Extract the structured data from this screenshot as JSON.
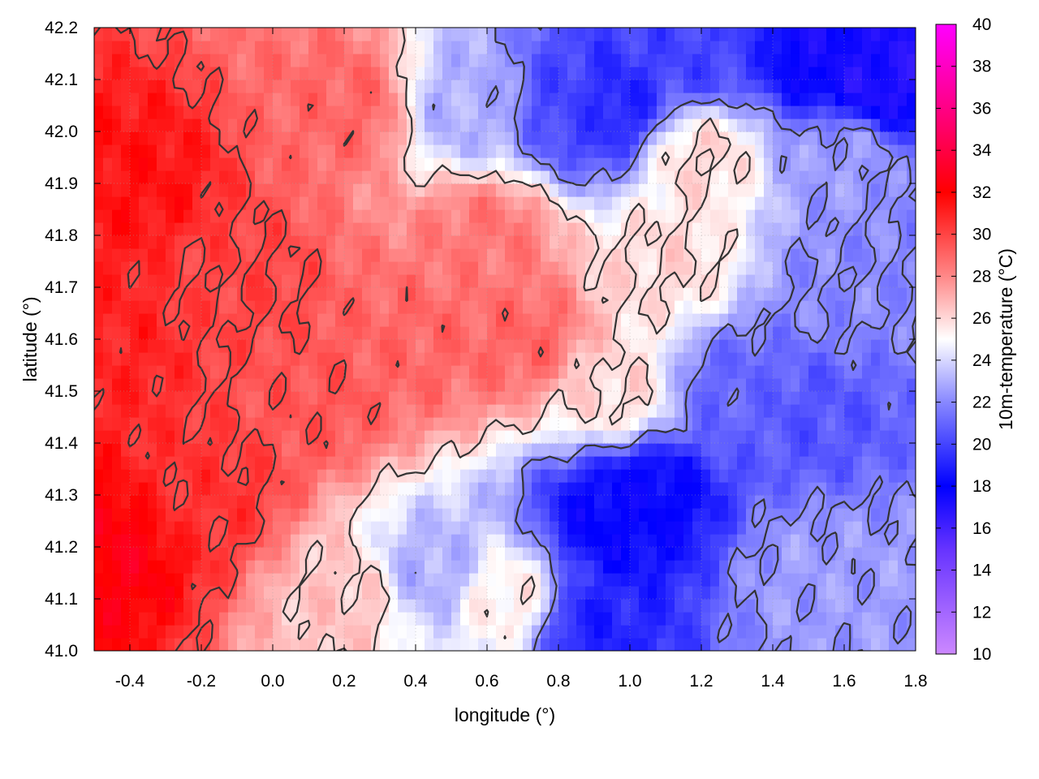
{
  "chart_data": {
    "type": "heatmap",
    "title": "",
    "xlabel": "longitude (°)",
    "ylabel": "latitude (°)",
    "colorbar_label": "10m-temperature (°C)",
    "xlim": [
      -0.5,
      1.8
    ],
    "ylim": [
      41.0,
      42.2
    ],
    "clim": [
      10,
      40
    ],
    "x_ticks": [
      -0.4,
      -0.2,
      0.0,
      0.2,
      0.4,
      0.6,
      0.8,
      1.0,
      1.2,
      1.4,
      1.6,
      1.8
    ],
    "x_tick_labels": [
      "-0.4",
      "-0.2",
      "0.0",
      "0.2",
      "0.4",
      "0.6",
      "0.8",
      "1.0",
      "1.2",
      "1.4",
      "1.6",
      "1.8"
    ],
    "y_ticks": [
      41.0,
      41.1,
      41.2,
      41.3,
      41.4,
      41.5,
      41.6,
      41.7,
      41.8,
      41.9,
      42.0,
      42.1,
      42.2
    ],
    "y_tick_labels": [
      "41.0",
      "41.1",
      "41.2",
      "41.3",
      "41.4",
      "41.5",
      "41.6",
      "41.7",
      "41.8",
      "41.9",
      "42.0",
      "42.1",
      "42.2"
    ],
    "cb_ticks": [
      10,
      12,
      14,
      16,
      18,
      20,
      22,
      24,
      26,
      28,
      30,
      32,
      34,
      36,
      38,
      40
    ],
    "cb_tick_labels": [
      "10",
      "12",
      "14",
      "16",
      "18",
      "20",
      "22",
      "24",
      "26",
      "28",
      "30",
      "32",
      "34",
      "36",
      "38",
      "40"
    ],
    "colormap": [
      {
        "v": 10,
        "c": "#cc88ff"
      },
      {
        "v": 15,
        "c": "#6633ff"
      },
      {
        "v": 18,
        "c": "#0000ff"
      },
      {
        "v": 22,
        "c": "#8888ff"
      },
      {
        "v": 25,
        "c": "#ffffff"
      },
      {
        "v": 28,
        "c": "#ff8888"
      },
      {
        "v": 32,
        "c": "#ff0000"
      },
      {
        "v": 35,
        "c": "#ff0066"
      },
      {
        "v": 40,
        "c": "#ff00ff"
      }
    ],
    "grid": true,
    "field_regions": [
      {
        "lon": -0.4,
        "lat": 41.9,
        "t": 31.5
      },
      {
        "lon": -0.45,
        "lat": 41.6,
        "t": 31
      },
      {
        "lon": -0.45,
        "lat": 41.2,
        "t": 32.5
      },
      {
        "lon": -0.2,
        "lat": 41.3,
        "t": 30.5
      },
      {
        "lon": -0.1,
        "lat": 41.7,
        "t": 30
      },
      {
        "lon": 0.1,
        "lat": 41.5,
        "t": 29.5
      },
      {
        "lon": 0.2,
        "lat": 42.05,
        "t": 29
      },
      {
        "lon": 0.4,
        "lat": 41.6,
        "t": 29
      },
      {
        "lon": 0.7,
        "lat": 41.6,
        "t": 29
      },
      {
        "lon": 0.6,
        "lat": 41.8,
        "t": 28.5
      },
      {
        "lon": 0.2,
        "lat": 41.1,
        "t": 26.5
      },
      {
        "lon": 0.45,
        "lat": 41.15,
        "t": 23
      },
      {
        "lon": 0.65,
        "lat": 41.1,
        "t": 25.5
      },
      {
        "lon": 0.9,
        "lat": 41.05,
        "t": 19
      },
      {
        "lon": 0.95,
        "lat": 41.25,
        "t": 18
      },
      {
        "lon": 1.05,
        "lat": 41.3,
        "t": 18
      },
      {
        "lon": 1.3,
        "lat": 41.5,
        "t": 21
      },
      {
        "lon": 1.5,
        "lat": 41.45,
        "t": 20.5
      },
      {
        "lon": 1.5,
        "lat": 41.15,
        "t": 22.5
      },
      {
        "lon": 1.7,
        "lat": 41.1,
        "t": 22.5
      },
      {
        "lon": 1.6,
        "lat": 41.7,
        "t": 22
      },
      {
        "lon": 1.6,
        "lat": 41.95,
        "t": 22.5
      },
      {
        "lon": 1.55,
        "lat": 42.15,
        "t": 17.5
      },
      {
        "lon": 1.7,
        "lat": 42.1,
        "t": 17
      },
      {
        "lon": 1.2,
        "lat": 42.15,
        "t": 20
      },
      {
        "lon": 0.85,
        "lat": 42.05,
        "t": 20
      },
      {
        "lon": 0.95,
        "lat": 42.05,
        "t": 19
      },
      {
        "lon": 0.55,
        "lat": 42.05,
        "t": 23
      },
      {
        "lon": 1.1,
        "lat": 41.75,
        "t": 26
      },
      {
        "lon": 1.2,
        "lat": 41.95,
        "t": 26
      },
      {
        "lon": 0.95,
        "lat": 41.5,
        "t": 26
      }
    ],
    "contour_levels": [
      22,
      26,
      30
    ]
  }
}
